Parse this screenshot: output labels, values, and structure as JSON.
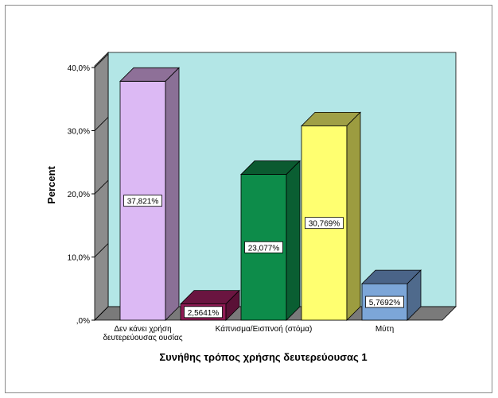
{
  "chart_data": {
    "type": "bar",
    "xlabel": "Συνήθης τρόπος χρήσης δευτερεύουσας 1",
    "ylabel": "Percent",
    "ylim": [
      0,
      40
    ],
    "yticks": [
      0,
      10,
      20,
      30,
      40
    ],
    "ytick_labels": [
      ",0%",
      "10,0%",
      "20,0%",
      "30,0%",
      "40,0%"
    ],
    "categories": [
      "Δεν κάνει χρήση δευτερεύουσας ουσίας",
      "",
      "Κάπνισμα/Εισπνοή (στόμα)",
      "",
      "Μύτη"
    ],
    "category_label_lines": [
      [
        "Δεν κάνει χρήση",
        "δευτερεύουσας ουσίας"
      ],
      [],
      [
        "Κάπνισμα/Εισπνοή (στόμα)"
      ],
      [],
      [
        "Μύτη"
      ]
    ],
    "values": [
      37.821,
      2.5641,
      23.077,
      30.769,
      5.7692
    ],
    "data_labels": [
      "37,821%",
      "2,5641%",
      "23,077%",
      "30,769%",
      "5,7692%"
    ],
    "colors": [
      "#dcb9f4",
      "#8f1a54",
      "#0d8c4a",
      "#ffff70",
      "#7ca6d8"
    ],
    "side_colors": [
      "#8a7096",
      "#5a1036",
      "#0a5e32",
      "#9c9c40",
      "#4f6a8c"
    ],
    "top_colors": [
      "#8e7098",
      "#6a1540",
      "#0b5a30",
      "#a0a046",
      "#4a6488"
    ],
    "wall_color": "#b3e6e6",
    "floor_color": "#7a7a7a",
    "grid": false,
    "style": "3d-bar"
  }
}
